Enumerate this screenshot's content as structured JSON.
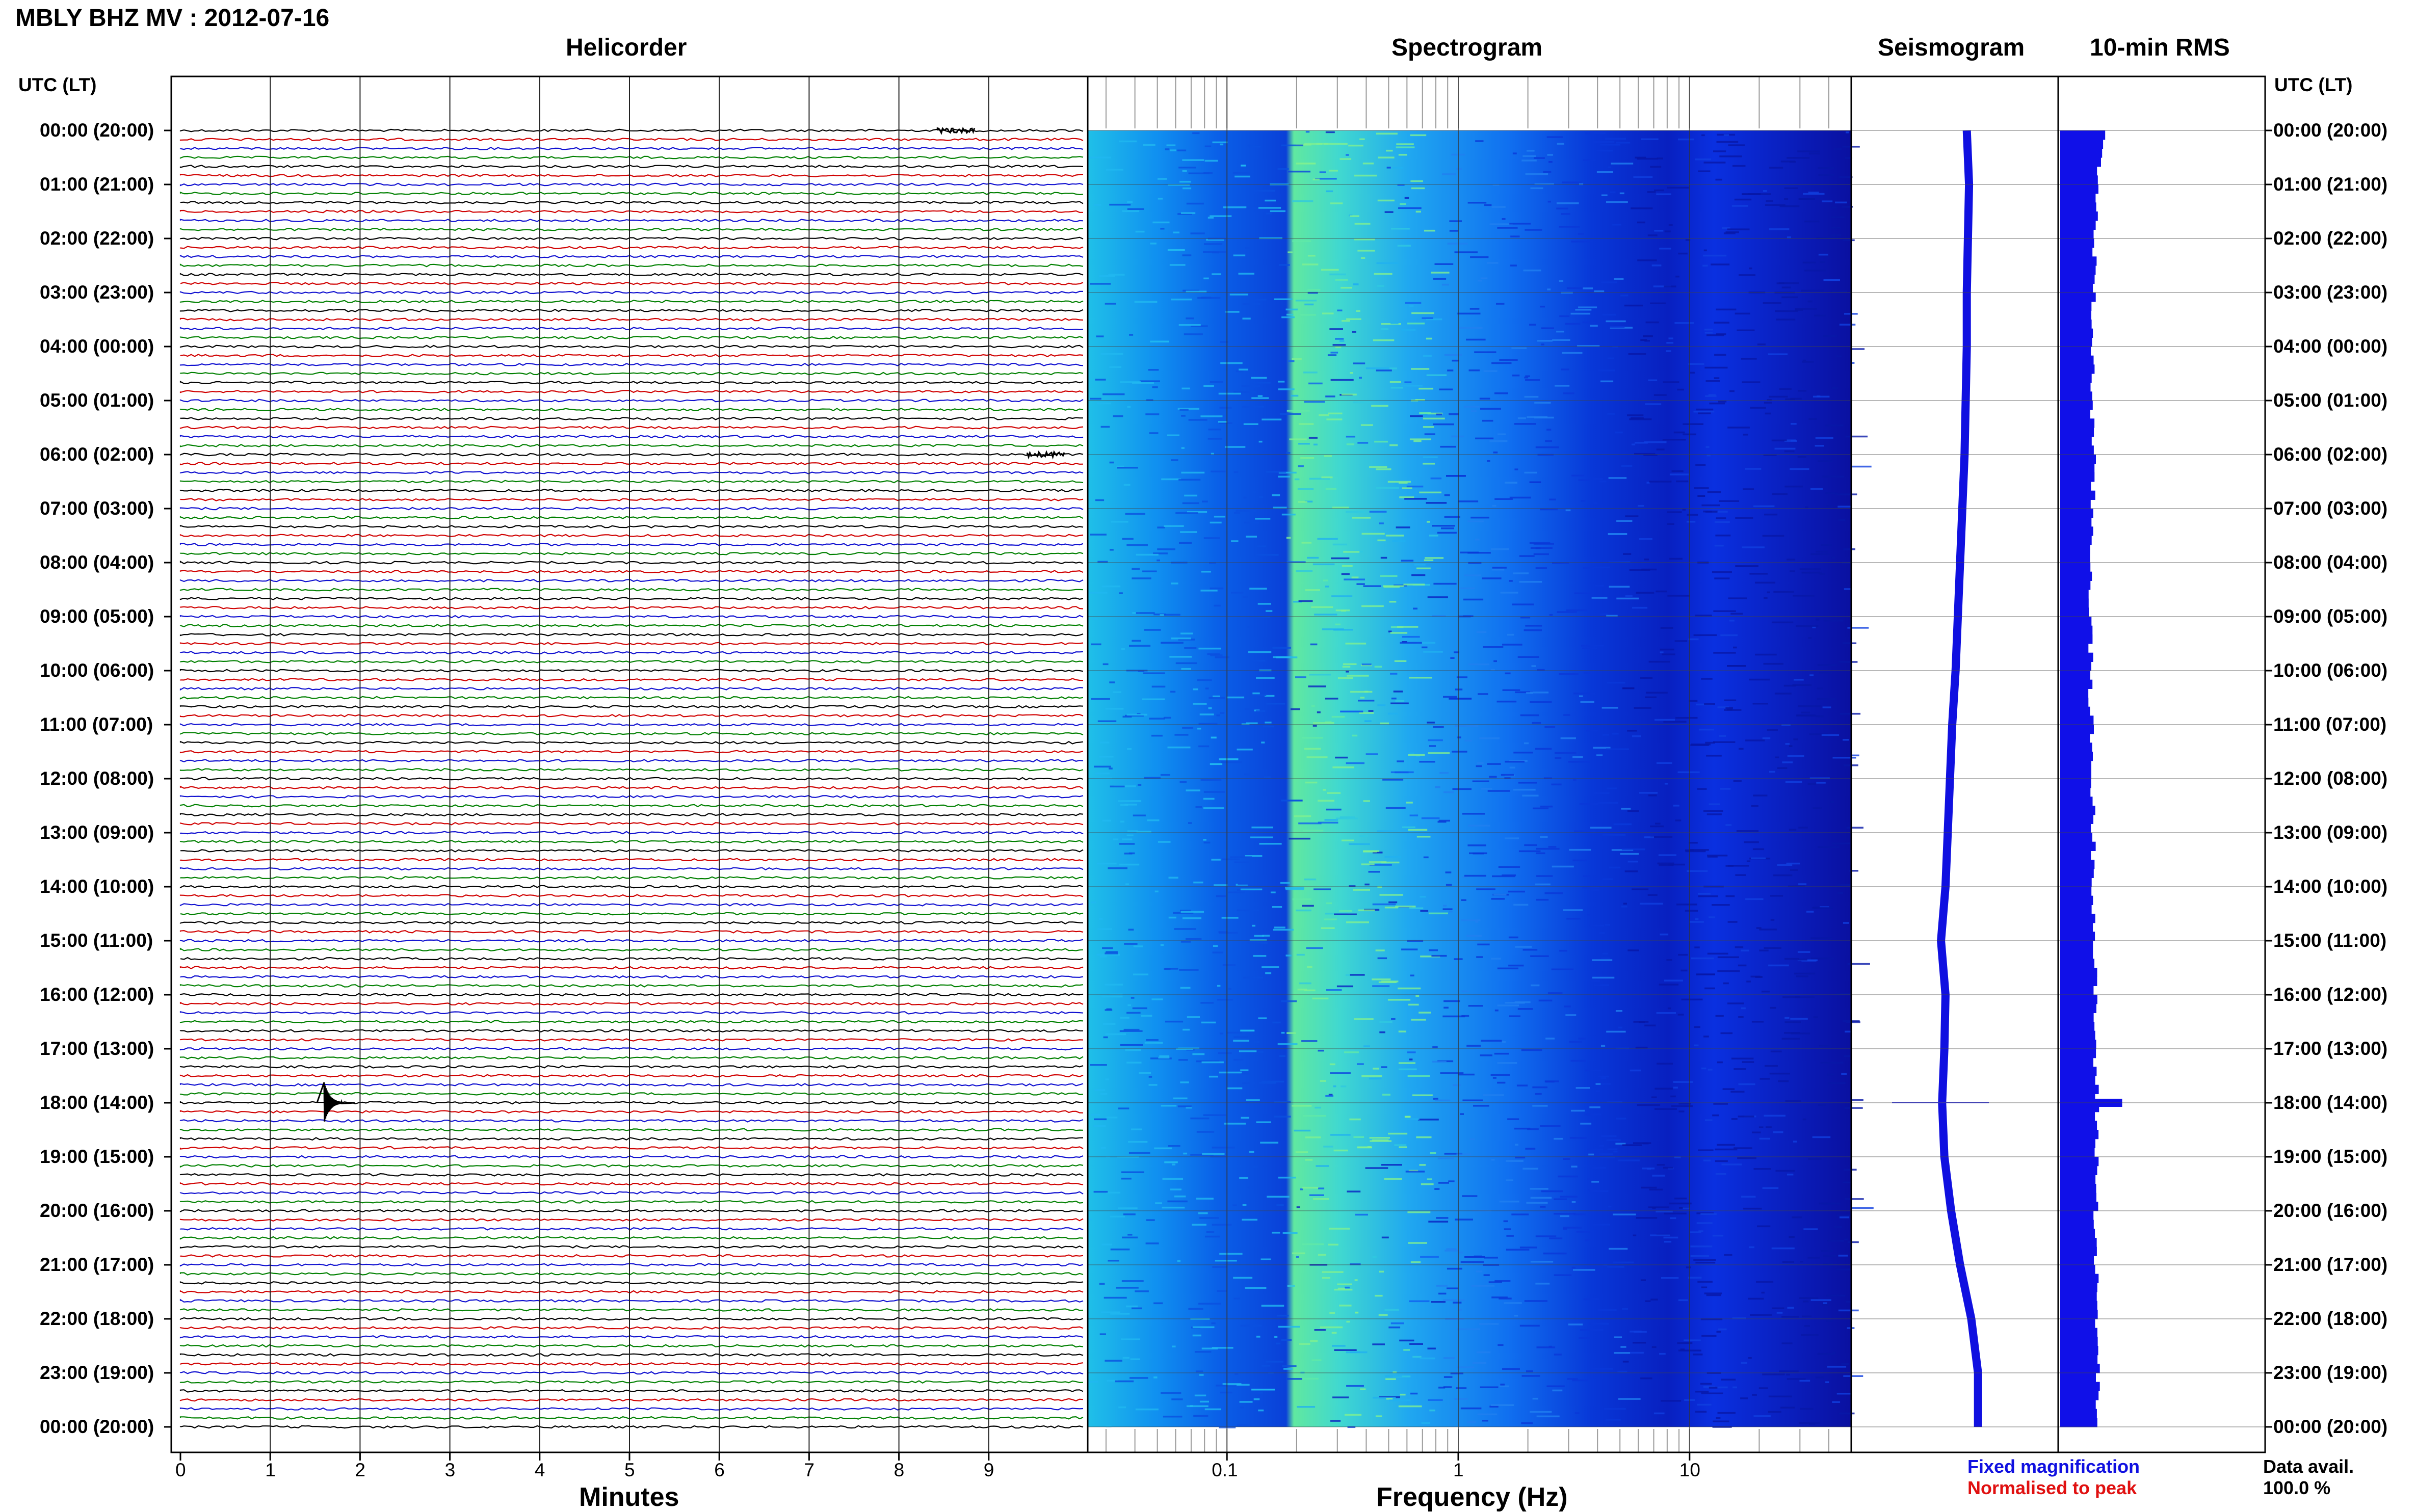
{
  "header": {
    "title": "MBLY BHZ MV : 2012-07-16"
  },
  "panels": {
    "helicorder": "Helicorder",
    "spectrogram": "Spectrogram",
    "seismogram": "Seismogram",
    "rms": "10-min RMS"
  },
  "axes": {
    "left_header": "UTC (LT)",
    "right_header": "UTC (LT)",
    "minutes_label": "Minutes",
    "frequency_label": "Frequency (Hz)"
  },
  "time_labels": [
    "00:00 (20:00)",
    "01:00 (21:00)",
    "02:00 (22:00)",
    "03:00 (23:00)",
    "04:00 (00:00)",
    "05:00 (01:00)",
    "06:00 (02:00)",
    "07:00 (03:00)",
    "08:00 (04:00)",
    "09:00 (05:00)",
    "10:00 (06:00)",
    "11:00 (07:00)",
    "12:00 (08:00)",
    "13:00 (09:00)",
    "14:00 (10:00)",
    "15:00 (11:00)",
    "16:00 (12:00)",
    "17:00 (13:00)",
    "18:00 (14:00)",
    "19:00 (15:00)",
    "20:00 (16:00)",
    "21:00 (17:00)",
    "22:00 (18:00)",
    "23:00 (19:00)",
    "00:00 (20:00)"
  ],
  "legend": {
    "fixed": "Fixed magnification",
    "normalised": "Normalised to peak",
    "fixed_color": "#1010e0",
    "normalised_color": "#e01010"
  },
  "data_avail": {
    "label": "Data avail.",
    "value": "100.0 %"
  },
  "chart_data": [
    {
      "type": "line",
      "title": "Helicorder",
      "xlabel": "Minutes",
      "x_ticks": [
        "0",
        "1",
        "2",
        "3",
        "4",
        "5",
        "6",
        "7",
        "8",
        "9"
      ],
      "xlim": [
        0,
        10
      ],
      "rows_per_hour": 6,
      "hours": 24,
      "trace_colors": [
        "#000000",
        "#d00000",
        "#1010d0",
        "#008000"
      ],
      "events": [
        {
          "time_utc": "00:00",
          "minute": 8.6
        },
        {
          "time_utc": "06:00",
          "minute": 9.6
        },
        {
          "time_utc": "18:00",
          "minute": 1.6
        }
      ]
    },
    {
      "type": "heatmap",
      "title": "Spectrogram",
      "xlabel": "Frequency (Hz)",
      "x_scale": "log",
      "xlim": [
        0.025,
        50
      ],
      "x_ticks": [
        "0.1",
        "1",
        "10"
      ],
      "colormap": [
        "#0a00a0",
        "#0030f0",
        "#0090ff",
        "#20d0e8",
        "#a0f080"
      ]
    },
    {
      "type": "line",
      "title": "Seismogram",
      "series": [
        {
          "hour": [
            0,
            1,
            2,
            3,
            4,
            5,
            6,
            7,
            8,
            9,
            10,
            11,
            12,
            13,
            14,
            15,
            16,
            17,
            18,
            19,
            20,
            21,
            22,
            23,
            24
          ],
          "values": [
            0.2,
            0.22,
            0.21,
            0.2,
            0.2,
            0.19,
            0.18,
            0.16,
            0.14,
            0.12,
            0.1,
            0.07,
            0.05,
            0.03,
            0.01,
            -0.03,
            0.01,
            0.0,
            -0.02,
            0.0,
            0.06,
            0.14,
            0.24,
            0.3,
            0.3
          ]
        }
      ]
    },
    {
      "type": "bar",
      "title": "10-min RMS",
      "hours": 24,
      "bins_per_hour": 6,
      "values_relative": [
        0.95,
        0.8,
        0.75,
        0.72,
        0.7,
        0.7,
        0.72,
        0.7,
        0.68,
        0.66,
        0.66,
        0.68,
        0.7,
        0.72,
        0.74,
        0.74,
        0.76,
        0.76,
        0.8,
        0.8,
        0.78,
        0.78,
        0.8,
        0.82,
        0.82
      ],
      "spike": {
        "time_utc": "18:00",
        "value_relative": 1.35
      }
    }
  ]
}
